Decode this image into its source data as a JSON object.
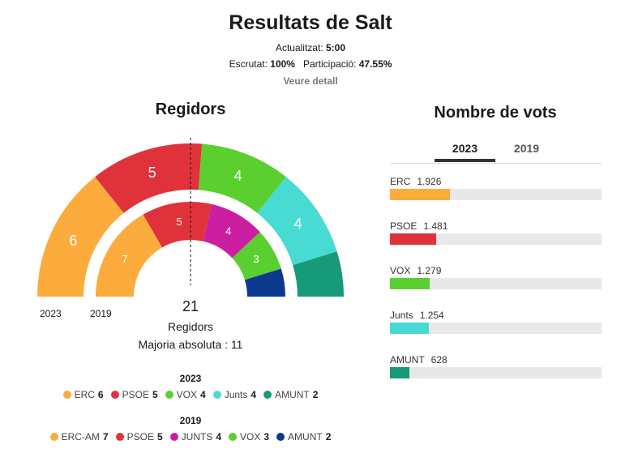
{
  "header": {
    "title": "Resultats de Salt",
    "updated_label": "Actualitzat:",
    "updated_value": "5:00",
    "scrutiny_label": "Escrutat:",
    "scrutiny_value": "100%",
    "participation_label": "Participació:",
    "participation_value": "47.55%",
    "detail_link": "Veure detall"
  },
  "regidors": {
    "title": "Regidors",
    "year_outer": "2023",
    "year_inner": "2019",
    "total": "21",
    "total_label": "Regidors",
    "majority": "Majoria absoluta : 11"
  },
  "votes": {
    "title": "Nombre de vots",
    "tabs": [
      "2023",
      "2019"
    ],
    "active_tab": "2023"
  },
  "legend": {
    "y2023": "2023",
    "y2019": "2019"
  },
  "chart_data": [
    {
      "type": "semicircle",
      "name": "2023",
      "series": [
        {
          "party": "ERC",
          "seats": 6,
          "color": "#fbac3c"
        },
        {
          "party": "PSOE",
          "seats": 5,
          "color": "#e0323a"
        },
        {
          "party": "VOX",
          "seats": 4,
          "color": "#5bcf2f"
        },
        {
          "party": "Junts",
          "seats": 4,
          "color": "#48dbd3"
        },
        {
          "party": "AMUNT",
          "seats": 2,
          "color": "#179a7a"
        }
      ]
    },
    {
      "type": "semicircle",
      "name": "2019",
      "series": [
        {
          "party": "ERC-AM",
          "seats": 7,
          "color": "#fbac3c"
        },
        {
          "party": "PSOE",
          "seats": 5,
          "color": "#e0323a"
        },
        {
          "party": "JUNTS",
          "seats": 4,
          "color": "#cc1ea0"
        },
        {
          "party": "VOX",
          "seats": 3,
          "color": "#5bcf2f"
        },
        {
          "party": "AMUNT",
          "seats": 2,
          "color": "#0a3a8e"
        }
      ]
    },
    {
      "type": "bar",
      "name": "2023",
      "series": [
        {
          "party": "ERC",
          "value": 1926,
          "display": "1.926",
          "color": "#fbac3c"
        },
        {
          "party": "PSOE",
          "value": 1481,
          "display": "1.481",
          "color": "#e0323a"
        },
        {
          "party": "VOX",
          "value": 1279,
          "display": "1.279",
          "color": "#5bcf2f"
        },
        {
          "party": "Junts",
          "value": 1254,
          "display": "1.254",
          "color": "#48dbd3"
        },
        {
          "party": "AMUNT",
          "value": 628,
          "display": "628",
          "color": "#179a7a"
        }
      ],
      "xlim": [
        0,
        6800
      ]
    }
  ]
}
